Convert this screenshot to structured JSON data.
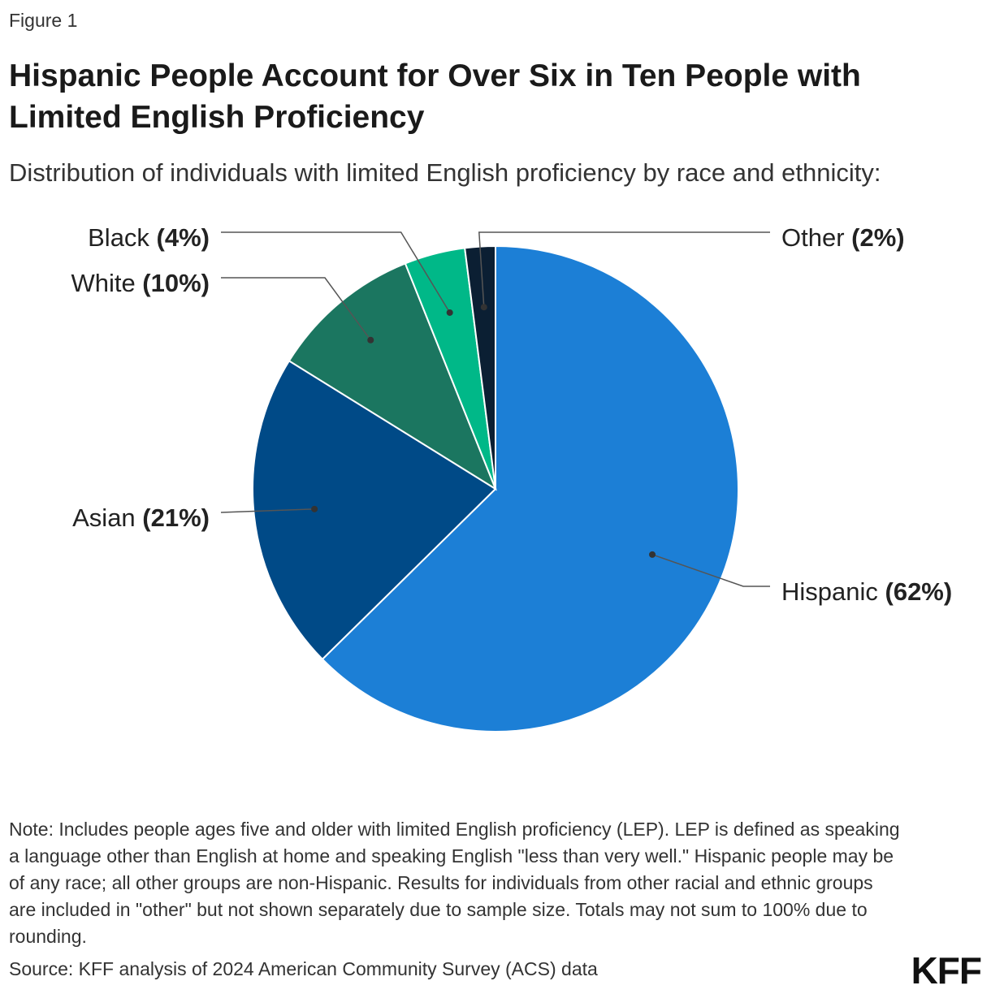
{
  "figure_label": "Figure 1",
  "chart_data": {
    "type": "pie",
    "title": "Hispanic People Account for Over Six in Ten People with Limited English Proficiency",
    "subtitle": "Distribution of individuals with limited English proficiency by race and ethnicity:",
    "slices": [
      {
        "name": "Hispanic",
        "value": 62,
        "label": "62%",
        "color": "#1c7fd6"
      },
      {
        "name": "Asian",
        "value": 21,
        "label": "21%",
        "color": "#004a87"
      },
      {
        "name": "White",
        "value": 10,
        "label": "10%",
        "color": "#1b7660"
      },
      {
        "name": "Black",
        "value": 4,
        "label": "4%",
        "color": "#00b888"
      },
      {
        "name": "Other",
        "value": 2,
        "label": "2%",
        "color": "#0b1f33"
      }
    ]
  },
  "note": "Note: Includes people ages five and older with limited English proficiency (LEP). LEP is defined as speaking a language other than English at home and speaking English \"less than very well.\" Hispanic people may be of any race; all other groups are non-Hispanic. Results for individuals from other racial and ethnic groups are included in \"other\" but not shown separately due to sample size. Totals may not sum to 100% due to rounding.",
  "source": "Source: KFF analysis of 2024 American Community Survey (ACS) data",
  "logo": "KFF"
}
